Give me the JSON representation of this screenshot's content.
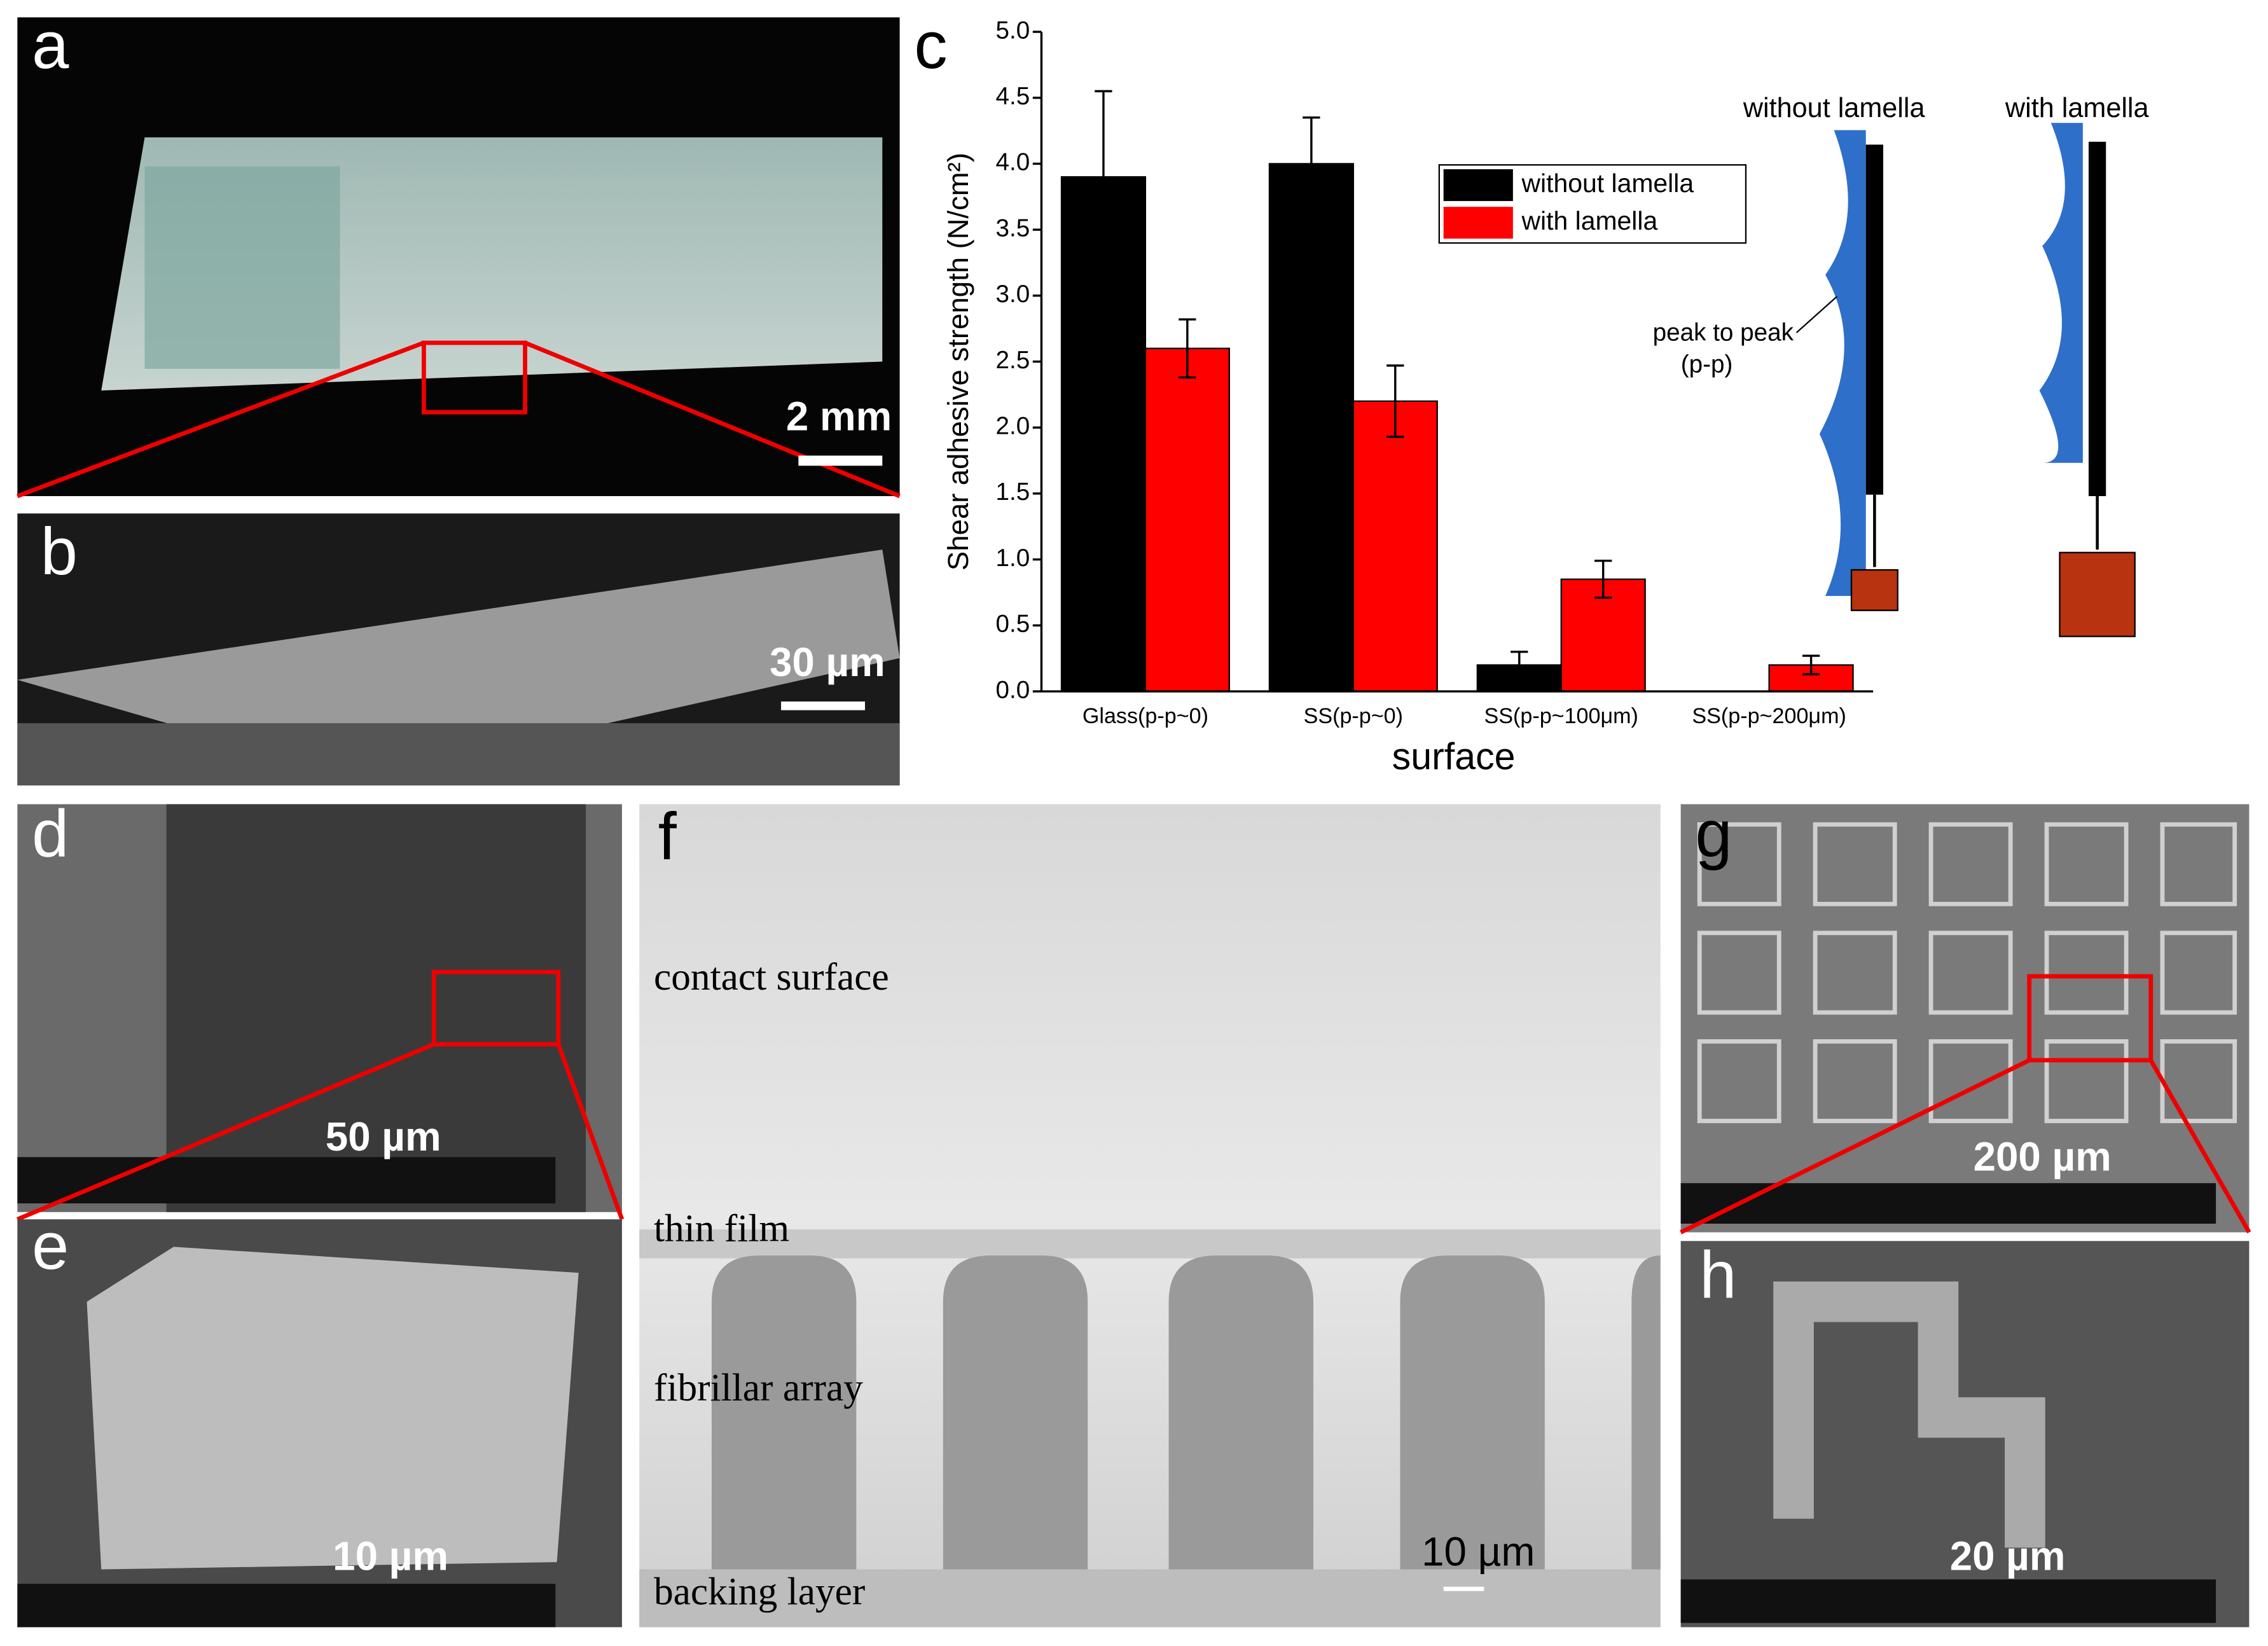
{
  "chart_data": {
    "type": "bar",
    "panel_label": "c",
    "y_label": "Shear adhesive strength (N/cm²)",
    "x_label": "surface",
    "categories": [
      "Glass(p-p~0)",
      "SS(p-p~0)",
      "SS(p-p~100μm)",
      "SS(p-p~200μm)"
    ],
    "series": [
      {
        "name": "without lamella",
        "color": "#000000",
        "values": [
          3.9,
          4.0,
          0.2,
          0
        ],
        "errors": [
          0.65,
          0.35,
          0.1,
          null
        ]
      },
      {
        "name": "with lamella",
        "color": "#ff0000",
        "values": [
          2.6,
          2.2,
          0.85,
          0.2
        ],
        "errors": [
          0.22,
          0.27,
          0.14,
          0.07
        ]
      }
    ],
    "ylim": [
      0,
      5
    ],
    "yticks": [
      {
        "value": 0,
        "label": "0.0"
      },
      0.5,
      {
        "value": 1,
        "label": "1.0"
      },
      1.5,
      {
        "value": 2,
        "label": "2.0"
      },
      2.5,
      {
        "value": 3,
        "label": "3.0"
      },
      3.5,
      {
        "value": 4,
        "label": "4.0"
      },
      4.5,
      {
        "value": 5,
        "label": "5.0"
      }
    ]
  },
  "panels": {
    "a": {
      "label": "a",
      "scale": "2 mm"
    },
    "b": {
      "label": "b",
      "scale": "30 µm"
    },
    "d": {
      "label": "d",
      "scale": "50 µm"
    },
    "e": {
      "label": "e",
      "scale": "10 µm"
    },
    "f": {
      "label": "f",
      "scale": "10 µm",
      "layers": [
        "contact surface",
        "thin film",
        "fibrillar array",
        "backing layer"
      ]
    },
    "g": {
      "label": "g",
      "scale": "200 µm"
    },
    "h": {
      "label": "h",
      "scale": "20 µm"
    },
    "diagram": {
      "left_title": "without lamella",
      "right_title": "with lamella",
      "annotation": "peak to peak",
      "annotation_abbr": "(p-p)"
    }
  }
}
